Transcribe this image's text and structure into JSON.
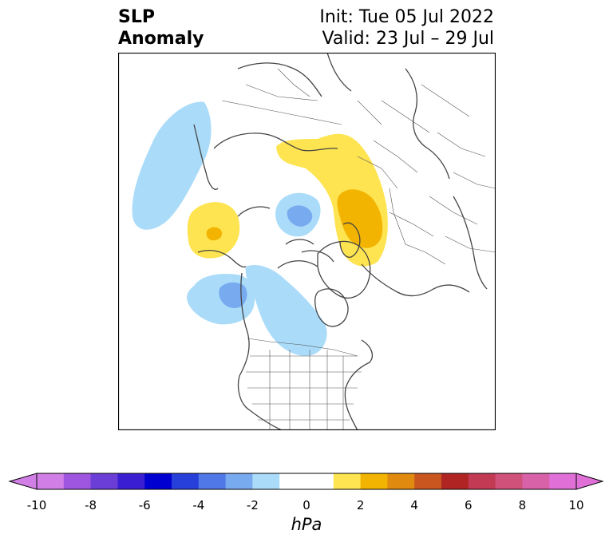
{
  "title": {
    "left_line1": "SLP",
    "left_line2": "Anomaly",
    "init": "Init: Tue 05 Jul 2022",
    "valid": "Valid: 23 Jul – 29 Jul"
  },
  "colorbar": {
    "unit": "hPa",
    "tick_labels": [
      "-10",
      "-8",
      "-6",
      "-4",
      "-2",
      "0",
      "2",
      "4",
      "6",
      "8",
      "10"
    ],
    "colors": [
      "#d17fe6",
      "#9e55e0",
      "#6c3ed8",
      "#3a1fd2",
      "#0000d0",
      "#2840da",
      "#5078e6",
      "#78aaf0",
      "#aadcfa",
      "#ffffff",
      "#ffffff",
      "#fee450",
      "#f2b400",
      "#e08a10",
      "#c8561e",
      "#b02424",
      "#c23a54",
      "#d0527a",
      "#d862a8",
      "#e070d8"
    ],
    "left_arrow_color": "#d17fe6",
    "right_arrow_color": "#e070d8"
  },
  "map": {
    "projection": "north-polar-stereographic",
    "anomaly_regions": [
      {
        "name": "north-pacific-negative",
        "level": "-2",
        "color": "#aadcfa"
      },
      {
        "name": "east-pacific-positive",
        "level": "2",
        "color": "#fee450"
      },
      {
        "name": "east-pacific-positive-core",
        "level": "4",
        "color": "#f2b400"
      },
      {
        "name": "arctic-negative",
        "level": "-2",
        "color": "#aadcfa"
      },
      {
        "name": "arctic-negative-core",
        "level": "-4",
        "color": "#78aaf0"
      },
      {
        "name": "siberia-positive",
        "level": "2",
        "color": "#fee450"
      },
      {
        "name": "siberia-positive-core",
        "level": "4",
        "color": "#f2b400"
      },
      {
        "name": "alaska-negative",
        "level": "-2",
        "color": "#aadcfa"
      },
      {
        "name": "alaska-negative-core",
        "level": "-4",
        "color": "#78aaf0"
      },
      {
        "name": "canada-negative",
        "level": "-2",
        "color": "#aadcfa"
      }
    ]
  }
}
